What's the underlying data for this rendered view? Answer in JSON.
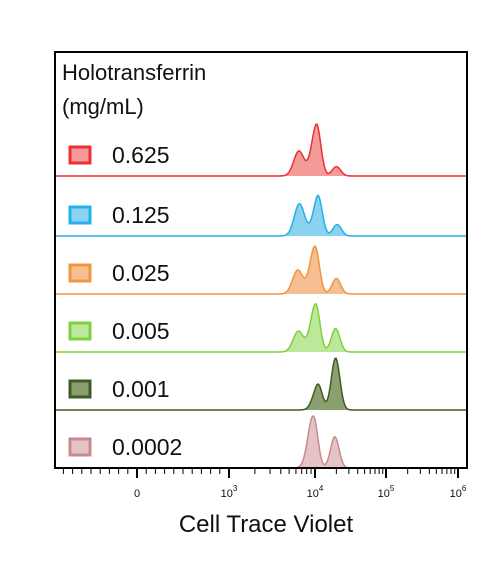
{
  "chart_data": {
    "type": "area",
    "xlabel": "Cell Trace Violet",
    "x_scale": "biexponential (log above 10^3)",
    "x_tick_labels": [
      "0",
      "10",
      "10",
      "10",
      "10"
    ],
    "x_tick_exponents": [
      "",
      "3",
      "4",
      "5",
      "6"
    ],
    "x_tick_values": [
      0,
      1000,
      10000,
      100000,
      1000000
    ],
    "legend_title_line1": "Holotransferrin",
    "legend_title_line2": "(mg/mL)",
    "legend_placement": "left",
    "series": [
      {
        "name": "0.625",
        "color": "#ef2e35",
        "fill": "#f29b98",
        "peaks": [
          {
            "x": 6500,
            "amp": 0.48
          },
          {
            "x": 10500,
            "amp": 1.0
          },
          {
            "x": 20000,
            "amp": 0.18
          }
        ]
      },
      {
        "name": "0.125",
        "color": "#22b1e8",
        "fill": "#8bd2f0",
        "peaks": [
          {
            "x": 6600,
            "amp": 0.62
          },
          {
            "x": 11000,
            "amp": 0.78
          },
          {
            "x": 20500,
            "amp": 0.22
          }
        ]
      },
      {
        "name": "0.025",
        "color": "#f29440",
        "fill": "#f6bf92",
        "peaks": [
          {
            "x": 6300,
            "amp": 0.46
          },
          {
            "x": 10000,
            "amp": 0.92
          },
          {
            "x": 20000,
            "amp": 0.3
          }
        ]
      },
      {
        "name": "0.005",
        "color": "#7fd03c",
        "fill": "#bde89c",
        "peaks": [
          {
            "x": 6400,
            "amp": 0.4
          },
          {
            "x": 10200,
            "amp": 0.93
          },
          {
            "x": 19500,
            "amp": 0.45
          }
        ]
      },
      {
        "name": "0.001",
        "color": "#3f5d20",
        "fill": "#8aa070",
        "peaks": [
          {
            "x": 11000,
            "amp": 0.5
          },
          {
            "x": 19500,
            "amp": 1.0
          }
        ]
      },
      {
        "name": "0.0002",
        "color": "#c98a8f",
        "fill": "#e4c3c5",
        "peaks": [
          {
            "x": 9500,
            "amp": 1.0
          },
          {
            "x": 19000,
            "amp": 0.6
          }
        ]
      }
    ]
  }
}
